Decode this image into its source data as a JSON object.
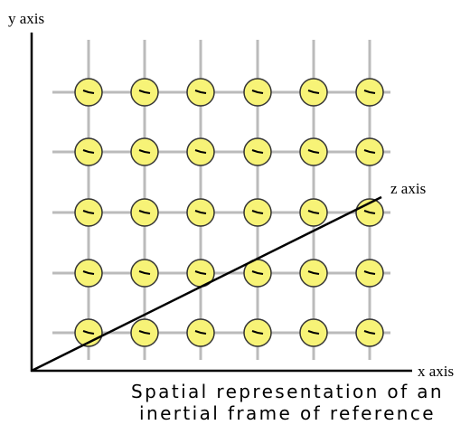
{
  "labels": {
    "y_axis": "y axis",
    "z_axis": "z axis",
    "x_axis": "x axis"
  },
  "caption": [
    "Spatial representation of an",
    "inertial frame of reference"
  ]
}
